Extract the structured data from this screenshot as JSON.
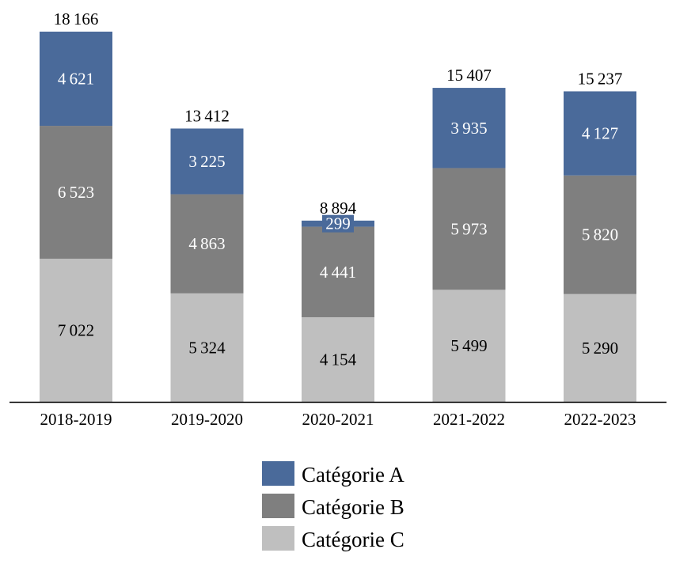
{
  "chart_data": {
    "type": "bar",
    "stacked": true,
    "categories": [
      "2018-2019",
      "2019-2020",
      "2020-2021",
      "2021-2022",
      "2022-2023"
    ],
    "series": [
      {
        "name": "Catégorie C",
        "values": [
          7022,
          5324,
          4154,
          5499,
          5290
        ],
        "color": "#bfbfbf",
        "label_color": "#000000"
      },
      {
        "name": "Catégorie B",
        "values": [
          6523,
          4863,
          4441,
          5973,
          5820
        ],
        "color": "#7f7f7f",
        "label_color": "#ffffff"
      },
      {
        "name": "Catégorie A",
        "values": [
          4621,
          3225,
          299,
          3935,
          4127
        ],
        "color": "#4a6a9a",
        "label_color": "#ffffff"
      }
    ],
    "totals": [
      18166,
      13412,
      8894,
      15407,
      15237
    ],
    "title": "",
    "xlabel": "",
    "ylabel": "",
    "ylim": [
      0,
      18166
    ],
    "grid": false,
    "legend_position": "bottom",
    "legend_order": [
      "Catégorie A",
      "Catégorie B",
      "Catégorie C"
    ]
  }
}
